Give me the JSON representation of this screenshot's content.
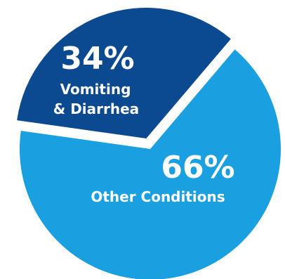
{
  "chart_data": {
    "type": "pie",
    "exploded": "Vomiting & Diarrhea",
    "slices": [
      {
        "name": "Vomiting & Diarrhea",
        "label_lines": [
          "Vomiting",
          "& Diarrhea"
        ],
        "percent_label": "34%",
        "value": 34,
        "color": "#0b4a91"
      },
      {
        "name": "Other Conditions",
        "label_lines": [
          "Other Conditions"
        ],
        "percent_label": "66%",
        "value": 66,
        "color": "#1a9fe0"
      }
    ]
  }
}
